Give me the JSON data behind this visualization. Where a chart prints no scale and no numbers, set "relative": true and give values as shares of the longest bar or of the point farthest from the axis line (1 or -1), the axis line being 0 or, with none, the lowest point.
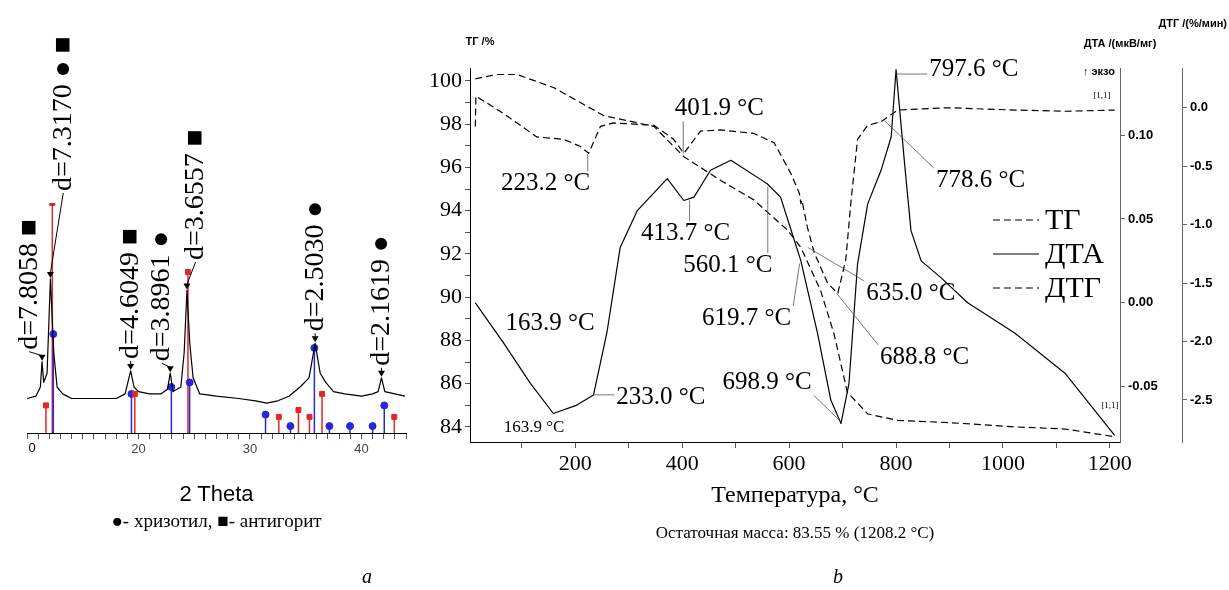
{
  "chart_data": [
    {
      "type": "line",
      "xlabel": "2 Theta",
      "relative": true,
      "xlim": [
        10,
        44
      ],
      "xticks": [
        {
          "value": 10,
          "label": null
        },
        {
          "value": 11,
          "label": null
        },
        {
          "value": 12,
          "label": null
        },
        {
          "value": 13,
          "label": null
        },
        {
          "value": 14,
          "label": null
        },
        {
          "value": 15,
          "label": null
        },
        {
          "value": 16,
          "label": null
        },
        {
          "value": 17,
          "label": null
        },
        {
          "value": 18,
          "label": null
        },
        {
          "value": 19,
          "label": null
        },
        20,
        {
          "value": 21,
          "label": null
        },
        {
          "value": 22,
          "label": null
        },
        {
          "value": 23,
          "label": null
        },
        {
          "value": 24,
          "label": null
        },
        {
          "value": 25,
          "label": null
        },
        {
          "value": 26,
          "label": null
        },
        {
          "value": 27,
          "label": null
        },
        {
          "value": 28,
          "label": null
        },
        {
          "value": 29,
          "label": null
        },
        30,
        {
          "value": 31,
          "label": null
        },
        {
          "value": 32,
          "label": null
        },
        {
          "value": 33,
          "label": null
        },
        {
          "value": 34,
          "label": null
        },
        {
          "value": 35,
          "label": null
        },
        {
          "value": 36,
          "label": null
        },
        {
          "value": 37,
          "label": null
        },
        {
          "value": 38,
          "label": null
        },
        {
          "value": 39,
          "label": null
        },
        40,
        {
          "value": 41,
          "label": null
        },
        {
          "value": 42,
          "label": null
        },
        {
          "value": 43,
          "label": null
        },
        {
          "value": 44,
          "label": null
        }
      ],
      "series": [
        {
          "color": "#000000",
          "x": [
            10.0,
            10.8,
            11.2,
            11.35,
            11.5,
            11.8,
            12.1,
            12.4,
            12.7,
            13.2,
            14,
            16,
            18,
            18.8,
            19.3,
            19.6,
            20,
            21,
            22,
            22.6,
            22.85,
            23.1,
            23.8,
            24.1,
            24.35,
            24.6,
            24.9,
            25.5,
            27,
            29,
            30.5,
            31.5,
            32.5,
            33.5,
            34.5,
            35.3,
            35.85,
            36.3,
            36.8,
            37.5,
            38.5,
            40,
            41,
            41.5,
            41.8,
            42.1,
            43,
            43.9
          ],
          "values": [
            0.15,
            0.16,
            0.2,
            0.31,
            0.22,
            0.26,
            0.67,
            0.35,
            0.2,
            0.17,
            0.15,
            0.15,
            0.15,
            0.17,
            0.27,
            0.2,
            0.18,
            0.17,
            0.17,
            0.19,
            0.26,
            0.18,
            0.2,
            0.35,
            0.62,
            0.39,
            0.24,
            0.17,
            0.16,
            0.15,
            0.14,
            0.13,
            0.14,
            0.16,
            0.2,
            0.24,
            0.39,
            0.26,
            0.22,
            0.18,
            0.17,
            0.16,
            0.17,
            0.18,
            0.24,
            0.18,
            0.17,
            0.16
          ]
        },
        {
          "type": "lollipop",
          "color": "#e02828",
          "marker": "square",
          "x": [
            11.7,
            12.27,
            19.67,
            24.44,
            32.59,
            34.35,
            35.34,
            36.47,
            42.95
          ],
          "values": [
            0.12,
            1,
            0.17,
            0.7,
            0.07,
            0.1,
            0.07,
            0.17,
            0.07
          ]
        },
        {
          "type": "lollipop",
          "color": "#2828d8",
          "marker": "circle",
          "x": [
            12.36,
            19.37,
            22.95,
            24.59,
            31.4,
            33.63,
            35.78,
            37.13,
            38.98,
            41.0,
            42.05
          ],
          "values": [
            0.43,
            0.17,
            0.2,
            0.22,
            0.08,
            0.03,
            0.37,
            0.03,
            0.03,
            0.03,
            0.12
          ]
        }
      ],
      "annotations": [
        {
          "text": "d=7.8058 ■",
          "x": 11.35,
          "y": 0.31
        },
        {
          "text": "d=7.3170 ● ■",
          "x": 12.1,
          "y": 0.67
        },
        {
          "text": "d=4.6049 ■",
          "x": 19.3,
          "y": 0.27
        },
        {
          "text": "d=3.8961 ●",
          "x": 22.85,
          "y": 0.26
        },
        {
          "text": "d=3.6557 ■",
          "x": 24.35,
          "y": 0.62
        },
        {
          "text": "d=2.5030 ●",
          "x": 35.85,
          "y": 0.39
        },
        {
          "text": "d=2.1619 ●",
          "x": 41.8,
          "y": 0.24
        },
        "0",
        "●- хризотил, ■- антигорит",
        "a"
      ]
    },
    {
      "type": "line",
      "xlabel": "Температура, °C",
      "ylabel": "ТГ /%",
      "y2label": "ДТА /(мкВ/мг)",
      "y3label": "ДТГ /(%/мин)",
      "legend": "right",
      "xlim": [
        3,
        1219
      ],
      "xticks": [
        {
          "value": 100,
          "label": null
        },
        200,
        {
          "value": 300,
          "label": null
        },
        400,
        {
          "value": 500,
          "label": null
        },
        600,
        {
          "value": 700,
          "label": null
        },
        800,
        {
          "value": 900,
          "label": null
        },
        1000,
        {
          "value": 1100,
          "label": null
        },
        1200
      ],
      "ylim": [
        83.3,
        100.6
      ],
      "yticks": [
        84,
        {
          "value": 85,
          "label": null
        },
        86,
        {
          "value": 87,
          "label": null
        },
        88,
        {
          "value": 89,
          "label": null
        },
        90,
        {
          "value": 91,
          "label": null
        },
        92,
        {
          "value": 93,
          "label": null
        },
        94,
        {
          "value": 95,
          "label": null
        },
        96,
        {
          "value": 97,
          "label": null
        },
        98,
        {
          "value": 99,
          "label": null
        },
        100
      ],
      "y2lim": [
        -0.083,
        0.14
      ],
      "y2ticks": [
        {
          "value": -0.05,
          "label": "-0.05"
        },
        {
          "value": 0,
          "label": "0.00"
        },
        {
          "value": 0.05,
          "label": "0.05"
        },
        {
          "value": 0.1,
          "label": "0.10"
        }
      ],
      "y3lim": [
        -2.86,
        0.34
      ],
      "y3ticks": [
        -2.5,
        {
          "value": -2,
          "label": "-2.0"
        },
        -1.5,
        {
          "value": -1,
          "label": "-1.0"
        },
        -0.5,
        {
          "value": 0,
          "label": "0.0"
        }
      ],
      "series": [
        {
          "name": "ТГ",
          "color": "#000000",
          "line_style": "dashed",
          "x": [
            13,
            53,
            91,
            159,
            253,
            347,
            403,
            472,
            534,
            597,
            622,
            659,
            684,
            709,
            747,
            803,
            897,
            1022,
            1116,
            1208
          ],
          "values": [
            100.1,
            100.3,
            100.3,
            99.7,
            98.4,
            97.9,
            96.5,
            95.4,
            94.5,
            93.1,
            92.3,
            90.3,
            88.3,
            85.6,
            84.6,
            84.3,
            84.2,
            84.0,
            83.9,
            83.55
          ]
        },
        {
          "name": "ДТА",
          "color": "#000000",
          "line_style": "solid",
          "axis": "y2",
          "x": [
            13,
            66,
            116,
            159,
            203,
            234,
            259,
            284,
            316,
            372,
            403,
            422,
            453,
            491,
            559,
            584,
            616,
            622,
            653,
            678,
            697,
            712,
            728,
            747,
            772,
            791,
            800,
            816,
            828,
            847,
            884,
            934,
            1022,
            1116,
            1209
          ],
          "values": [
            0.0,
            -0.024,
            -0.048,
            -0.066,
            -0.061,
            -0.055,
            -0.018,
            0.033,
            0.055,
            0.074,
            0.061,
            0.063,
            0.079,
            0.085,
            0.071,
            0.063,
            0.031,
            0.025,
            -0.018,
            -0.058,
            -0.072,
            -0.048,
            0.023,
            0.059,
            0.079,
            0.099,
            0.139,
            0.083,
            0.043,
            0.025,
            0.015,
            0.0,
            -0.018,
            -0.042,
            -0.079
          ]
        },
        {
          "name": "ДТГ",
          "color": "#000000",
          "line_style": "dashed",
          "axis": "y3",
          "x": [
            13,
            14,
            66,
            128,
            178,
            209,
            225,
            247,
            272,
            347,
            384,
            403,
            434,
            472,
            534,
            572,
            603,
            619,
            622,
            624,
            634,
            647,
            672,
            691,
            706,
            716,
            728,
            747,
            772,
            803,
            897,
            1022,
            1116,
            1209
          ],
          "values": [
            -0.16,
            0.1,
            -0.05,
            -0.25,
            -0.27,
            -0.33,
            -0.39,
            -0.16,
            -0.13,
            -0.15,
            -0.27,
            -0.39,
            -0.2,
            -0.19,
            -0.22,
            -0.3,
            -0.56,
            -0.73,
            -0.82,
            -0.79,
            -1.02,
            -1.24,
            -1.5,
            -1.59,
            -1.3,
            -0.79,
            -0.27,
            -0.15,
            -0.12,
            -0.02,
            0.0,
            -0.02,
            -0.03,
            -0.02
          ]
        }
      ],
      "annotations": [
        {
          "text": "223.2 °C",
          "x": 223.2,
          "y": 96.63
        },
        {
          "text": "401.9 °C",
          "x": 401.9,
          "y": 96.63
        },
        {
          "text": "413.7 °C",
          "x": 413.7,
          "y": 94.47
        },
        {
          "text": "560.1 °C",
          "x": 560.1,
          "y": 95.11
        },
        {
          "text": "619.7 °C",
          "x": 619.7,
          "y": 91.56
        },
        {
          "text": "635.0 °C",
          "x": 635.0,
          "y": 92.3
        },
        {
          "text": "688.8 °C",
          "x": 688.8,
          "y": 90.18
        },
        {
          "text": "698.9 °C",
          "x": 698.9,
          "y": 84.19
        },
        {
          "text": "797.6 °C",
          "x": 797.6,
          "y": 100.32
        },
        {
          "text": "778.6 °C",
          "x": 778.6,
          "y": 98.16
        },
        "163.9 °C",
        {
          "text": "163.9 °C",
          "x": 163.9,
          "y": 84.65
        },
        {
          "text": "233.0 °C",
          "x": 233.0,
          "y": 85.48
        },
        "↑ экзо",
        "[1,1]",
        "[1,1]",
        "Остаточная масса: 83.55 % (1208.2 °C)",
        "b"
      ]
    }
  ]
}
